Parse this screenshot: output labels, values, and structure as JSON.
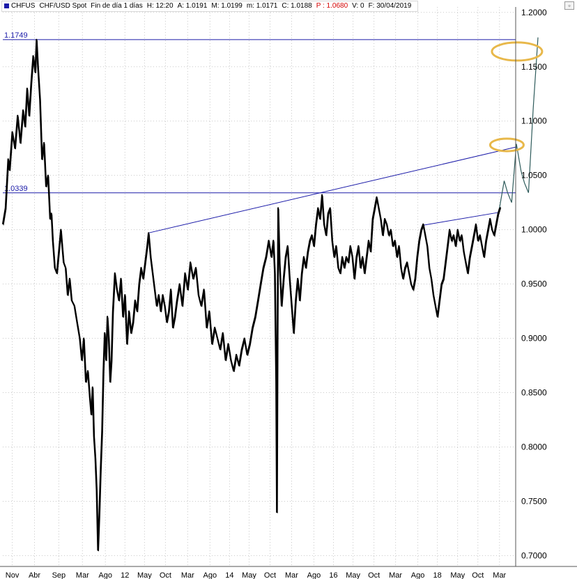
{
  "header": {
    "symbol": "CHFUS",
    "title": "CHF/USD Spot",
    "period": "Fin de día 1 días",
    "time": "H: 12:20",
    "open": "A: 1.0191",
    "high": "M: 1.0199",
    "low": "m: 1.0171",
    "close": "C: 1.0188",
    "projection": "P : 1.0680",
    "volume": "V: 0",
    "date": "F: 30/04/2019"
  },
  "corner_icon": "maximize-icon",
  "chart_data": {
    "type": "line",
    "series": [
      {
        "color": "#000000",
        "points": [
          [
            0,
            1.005
          ],
          [
            4,
            1.02
          ],
          [
            8,
            1.065
          ],
          [
            10,
            1.055
          ],
          [
            14,
            1.09
          ],
          [
            18,
            1.075
          ],
          [
            22,
            1.105
          ],
          [
            26,
            1.08
          ],
          [
            30,
            1.11
          ],
          [
            33,
            1.095
          ],
          [
            36,
            1.13
          ],
          [
            39,
            1.105
          ],
          [
            42,
            1.135
          ],
          [
            45,
            1.16
          ],
          [
            48,
            1.145
          ],
          [
            50,
            1.175
          ],
          [
            52,
            1.15
          ],
          [
            55,
            1.12
          ],
          [
            58,
            1.065
          ],
          [
            61,
            1.08
          ],
          [
            64,
            1.04
          ],
          [
            67,
            1.05
          ],
          [
            70,
            1.01
          ],
          [
            72,
            1.015
          ],
          [
            74,
            0.99
          ],
          [
            77,
            0.965
          ],
          [
            80,
            0.96
          ],
          [
            83,
            0.98
          ],
          [
            86,
            1.0
          ],
          [
            88,
            0.985
          ],
          [
            90,
            0.97
          ],
          [
            93,
            0.965
          ],
          [
            96,
            0.94
          ],
          [
            99,
            0.955
          ],
          [
            102,
            0.935
          ],
          [
            106,
            0.93
          ],
          [
            110,
            0.915
          ],
          [
            114,
            0.9
          ],
          [
            117,
            0.88
          ],
          [
            120,
            0.9
          ],
          [
            123,
            0.86
          ],
          [
            126,
            0.87
          ],
          [
            129,
            0.845
          ],
          [
            131,
            0.83
          ],
          [
            133,
            0.855
          ],
          [
            135,
            0.81
          ],
          [
            137,
            0.79
          ],
          [
            139,
            0.76
          ],
          [
            141,
            0.705
          ],
          [
            143,
            0.74
          ],
          [
            145,
            0.78
          ],
          [
            147,
            0.815
          ],
          [
            149,
            0.87
          ],
          [
            151,
            0.905
          ],
          [
            153,
            0.88
          ],
          [
            155,
            0.92
          ],
          [
            157,
            0.9
          ],
          [
            159,
            0.86
          ],
          [
            161,
            0.88
          ],
          [
            163,
            0.925
          ],
          [
            166,
            0.96
          ],
          [
            169,
            0.945
          ],
          [
            172,
            0.935
          ],
          [
            175,
            0.955
          ],
          [
            178,
            0.92
          ],
          [
            181,
            0.94
          ],
          [
            184,
            0.895
          ],
          [
            187,
            0.925
          ],
          [
            190,
            0.905
          ],
          [
            193,
            0.915
          ],
          [
            196,
            0.935
          ],
          [
            199,
            0.925
          ],
          [
            202,
            0.95
          ],
          [
            205,
            0.965
          ],
          [
            208,
            0.955
          ],
          [
            211,
            0.97
          ],
          [
            214,
            0.985
          ],
          [
            216,
            0.997
          ],
          [
            219,
            0.975
          ],
          [
            222,
            0.96
          ],
          [
            225,
            0.945
          ],
          [
            228,
            0.93
          ],
          [
            231,
            0.94
          ],
          [
            234,
            0.925
          ],
          [
            237,
            0.94
          ],
          [
            240,
            0.93
          ],
          [
            243,
            0.915
          ],
          [
            246,
            0.925
          ],
          [
            249,
            0.945
          ],
          [
            252,
            0.91
          ],
          [
            255,
            0.92
          ],
          [
            258,
            0.935
          ],
          [
            262,
            0.95
          ],
          [
            266,
            0.93
          ],
          [
            270,
            0.96
          ],
          [
            274,
            0.945
          ],
          [
            278,
            0.97
          ],
          [
            282,
            0.955
          ],
          [
            286,
            0.965
          ],
          [
            290,
            0.94
          ],
          [
            294,
            0.93
          ],
          [
            298,
            0.945
          ],
          [
            302,
            0.91
          ],
          [
            306,
            0.925
          ],
          [
            310,
            0.895
          ],
          [
            314,
            0.91
          ],
          [
            318,
            0.9
          ],
          [
            322,
            0.89
          ],
          [
            326,
            0.905
          ],
          [
            330,
            0.88
          ],
          [
            334,
            0.895
          ],
          [
            338,
            0.88
          ],
          [
            342,
            0.87
          ],
          [
            346,
            0.885
          ],
          [
            350,
            0.875
          ],
          [
            354,
            0.89
          ],
          [
            358,
            0.9
          ],
          [
            362,
            0.885
          ],
          [
            366,
            0.895
          ],
          [
            370,
            0.91
          ],
          [
            374,
            0.92
          ],
          [
            378,
            0.935
          ],
          [
            382,
            0.95
          ],
          [
            386,
            0.965
          ],
          [
            390,
            0.975
          ],
          [
            394,
            0.99
          ],
          [
            398,
            0.975
          ],
          [
            401,
            0.99
          ],
          [
            403,
            0.96
          ],
          [
            405,
            0.86
          ],
          [
            406,
            0.74
          ],
          [
            407,
            0.9
          ],
          [
            408,
            1.02
          ],
          [
            410,
            0.97
          ],
          [
            413,
            0.93
          ],
          [
            416,
            0.955
          ],
          [
            419,
            0.975
          ],
          [
            422,
            0.985
          ],
          [
            425,
            0.955
          ],
          [
            428,
            0.93
          ],
          [
            431,
            0.905
          ],
          [
            434,
            0.935
          ],
          [
            437,
            0.955
          ],
          [
            440,
            0.935
          ],
          [
            443,
            0.96
          ],
          [
            446,
            0.975
          ],
          [
            449,
            0.965
          ],
          [
            452,
            0.98
          ],
          [
            455,
            0.99
          ],
          [
            458,
            0.995
          ],
          [
            461,
            0.985
          ],
          [
            464,
            1.005
          ],
          [
            467,
            1.02
          ],
          [
            470,
            1.01
          ],
          [
            473,
            1.032
          ],
          [
            476,
            1.005
          ],
          [
            479,
            0.995
          ],
          [
            482,
            1.015
          ],
          [
            485,
            1.02
          ],
          [
            488,
            0.99
          ],
          [
            491,
            0.975
          ],
          [
            494,
            0.985
          ],
          [
            497,
            0.965
          ],
          [
            500,
            0.96
          ],
          [
            503,
            0.975
          ],
          [
            506,
            0.965
          ],
          [
            509,
            0.975
          ],
          [
            512,
            0.97
          ],
          [
            515,
            0.985
          ],
          [
            518,
            0.975
          ],
          [
            521,
            0.955
          ],
          [
            524,
            0.975
          ],
          [
            527,
            0.985
          ],
          [
            530,
            0.965
          ],
          [
            533,
            0.975
          ],
          [
            536,
            0.96
          ],
          [
            539,
            0.975
          ],
          [
            542,
            0.99
          ],
          [
            545,
            0.98
          ],
          [
            548,
            1.01
          ],
          [
            551,
            1.02
          ],
          [
            554,
            1.03
          ],
          [
            557,
            1.02
          ],
          [
            560,
            1.01
          ],
          [
            563,
            0.995
          ],
          [
            566,
            1.01
          ],
          [
            569,
            1.005
          ],
          [
            572,
            0.995
          ],
          [
            575,
            1.0
          ],
          [
            578,
            0.985
          ],
          [
            581,
            0.99
          ],
          [
            584,
            0.975
          ],
          [
            587,
            0.985
          ],
          [
            590,
            0.965
          ],
          [
            593,
            0.955
          ],
          [
            596,
            0.965
          ],
          [
            599,
            0.97
          ],
          [
            602,
            0.96
          ],
          [
            605,
            0.95
          ],
          [
            608,
            0.945
          ],
          [
            611,
            0.955
          ],
          [
            614,
            0.975
          ],
          [
            617,
            0.99
          ],
          [
            620,
            1.0
          ],
          [
            623,
            1.005
          ],
          [
            626,
            0.995
          ],
          [
            629,
            0.985
          ],
          [
            632,
            0.965
          ],
          [
            635,
            0.955
          ],
          [
            638,
            0.94
          ],
          [
            641,
            0.93
          ],
          [
            644,
            0.92
          ],
          [
            647,
            0.935
          ],
          [
            650,
            0.95
          ],
          [
            653,
            0.955
          ],
          [
            656,
            0.97
          ],
          [
            659,
            0.985
          ],
          [
            662,
            1.0
          ],
          [
            665,
            0.99
          ],
          [
            668,
            0.995
          ],
          [
            671,
            0.985
          ],
          [
            674,
            1.0
          ],
          [
            677,
            0.99
          ],
          [
            680,
            0.995
          ],
          [
            683,
            0.98
          ],
          [
            686,
            0.97
          ],
          [
            689,
            0.96
          ],
          [
            692,
            0.975
          ],
          [
            695,
            0.985
          ],
          [
            698,
            0.995
          ],
          [
            701,
            1.005
          ],
          [
            704,
            0.99
          ],
          [
            707,
            0.995
          ],
          [
            710,
            0.985
          ],
          [
            713,
            0.975
          ],
          [
            716,
            0.99
          ],
          [
            719,
            1.0
          ],
          [
            722,
            1.01
          ],
          [
            725,
            1.0
          ],
          [
            728,
            0.995
          ],
          [
            731,
            1.005
          ],
          [
            734,
            1.015
          ],
          [
            737,
            1.021
          ]
        ]
      }
    ],
    "projection_path": [
      [
        736,
        1.02
      ],
      [
        743,
        1.045
      ],
      [
        748,
        1.034
      ],
      [
        754,
        1.025
      ],
      [
        761,
        1.079
      ],
      [
        768,
        1.054
      ],
      [
        773,
        1.043
      ],
      [
        779,
        1.034
      ],
      [
        786,
        1.112
      ],
      [
        793,
        1.177
      ]
    ],
    "projection_color": "#2e5b5b",
    "horizontal_levels": [
      {
        "value": 1.1749,
        "label": "1.1749"
      },
      {
        "value": 1.0339,
        "label": "1.0339"
      }
    ],
    "trendlines": [
      {
        "from": [
          216,
          0.997
        ],
        "to": [
          760,
          1.076
        ]
      },
      {
        "from": [
          622,
          1.004
        ],
        "to": [
          736,
          1.016
        ]
      }
    ],
    "annotations": [
      {
        "type": "ellipse",
        "center": [
          762,
          1.164
        ],
        "color": "#e8b84a"
      },
      {
        "type": "ellipse",
        "center": [
          747,
          1.078
        ],
        "color": "#e8b84a"
      }
    ],
    "ylim": [
      0.69,
      1.205
    ],
    "xlim": [
      0,
      760
    ],
    "y_ticks": [
      0.7,
      0.75,
      0.8,
      0.85,
      0.9,
      0.95,
      1.0,
      1.05,
      1.1,
      1.15,
      1.2
    ],
    "y_tick_labels": [
      "0.7000",
      "0.7500",
      "0.8000",
      "0.8500",
      "0.9000",
      "0.9500",
      "1.0000",
      "1.0500",
      "1.1000",
      "1.1500",
      "1.2000"
    ],
    "x_ticks": [
      {
        "x": 14,
        "label": "Nov"
      },
      {
        "x": 47,
        "label": "Abr"
      },
      {
        "x": 83,
        "label": "Sep"
      },
      {
        "x": 118,
        "label": "Mar"
      },
      {
        "x": 152,
        "label": "Ago"
      },
      {
        "x": 181,
        "label": "12"
      },
      {
        "x": 210,
        "label": "May"
      },
      {
        "x": 241,
        "label": "Oct"
      },
      {
        "x": 274,
        "label": "Mar"
      },
      {
        "x": 307,
        "label": "Ago"
      },
      {
        "x": 336,
        "label": "14"
      },
      {
        "x": 365,
        "label": "May"
      },
      {
        "x": 396,
        "label": "Oct"
      },
      {
        "x": 428,
        "label": "Mar"
      },
      {
        "x": 461,
        "label": "Ago"
      },
      {
        "x": 490,
        "label": "16"
      },
      {
        "x": 519,
        "label": "May"
      },
      {
        "x": 550,
        "label": "Oct"
      },
      {
        "x": 582,
        "label": "Mar"
      },
      {
        "x": 615,
        "label": "Ago"
      },
      {
        "x": 644,
        "label": "18"
      },
      {
        "x": 674,
        "label": "May"
      },
      {
        "x": 704,
        "label": "Oct"
      },
      {
        "x": 736,
        "label": "Mar"
      }
    ],
    "grid": true,
    "grid_color": "#c8c8c8"
  }
}
